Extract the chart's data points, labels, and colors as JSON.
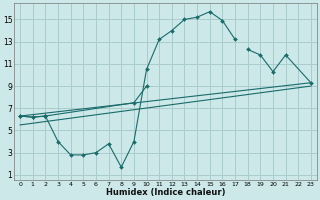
{
  "xlabel": "Humidex (Indice chaleur)",
  "bg_color": "#cce8e8",
  "grid_color": "#aacccc",
  "line_color": "#1a6b6b",
  "xlim": [
    -0.5,
    23.5
  ],
  "ylim": [
    0.5,
    16.5
  ],
  "xticks": [
    0,
    1,
    2,
    3,
    4,
    5,
    6,
    7,
    8,
    9,
    10,
    11,
    12,
    13,
    14,
    15,
    16,
    17,
    18,
    19,
    20,
    21,
    22,
    23
  ],
  "yticks": [
    1,
    3,
    5,
    7,
    9,
    11,
    13,
    15
  ],
  "line1_x": [
    0,
    1,
    2,
    3,
    4,
    5,
    6,
    7,
    8,
    9,
    10,
    11,
    12,
    13,
    14,
    15,
    16,
    17
  ],
  "line1_y": [
    6.3,
    6.2,
    6.3,
    4.0,
    2.8,
    2.8,
    3.0,
    3.8,
    1.7,
    4.0,
    10.5,
    13.2,
    14.0,
    15.0,
    15.2,
    15.7,
    14.9,
    13.2
  ],
  "line2_x": [
    0,
    1,
    2,
    9,
    10,
    18,
    19,
    20,
    21,
    23
  ],
  "line2_y": [
    6.3,
    6.2,
    6.3,
    7.5,
    9.0,
    12.3,
    11.8,
    10.3,
    11.8,
    9.3
  ],
  "line3_x": [
    0,
    23
  ],
  "line3_y": [
    6.3,
    9.3
  ],
  "line4_x": [
    0,
    23
  ],
  "line4_y": [
    5.5,
    9.0
  ]
}
